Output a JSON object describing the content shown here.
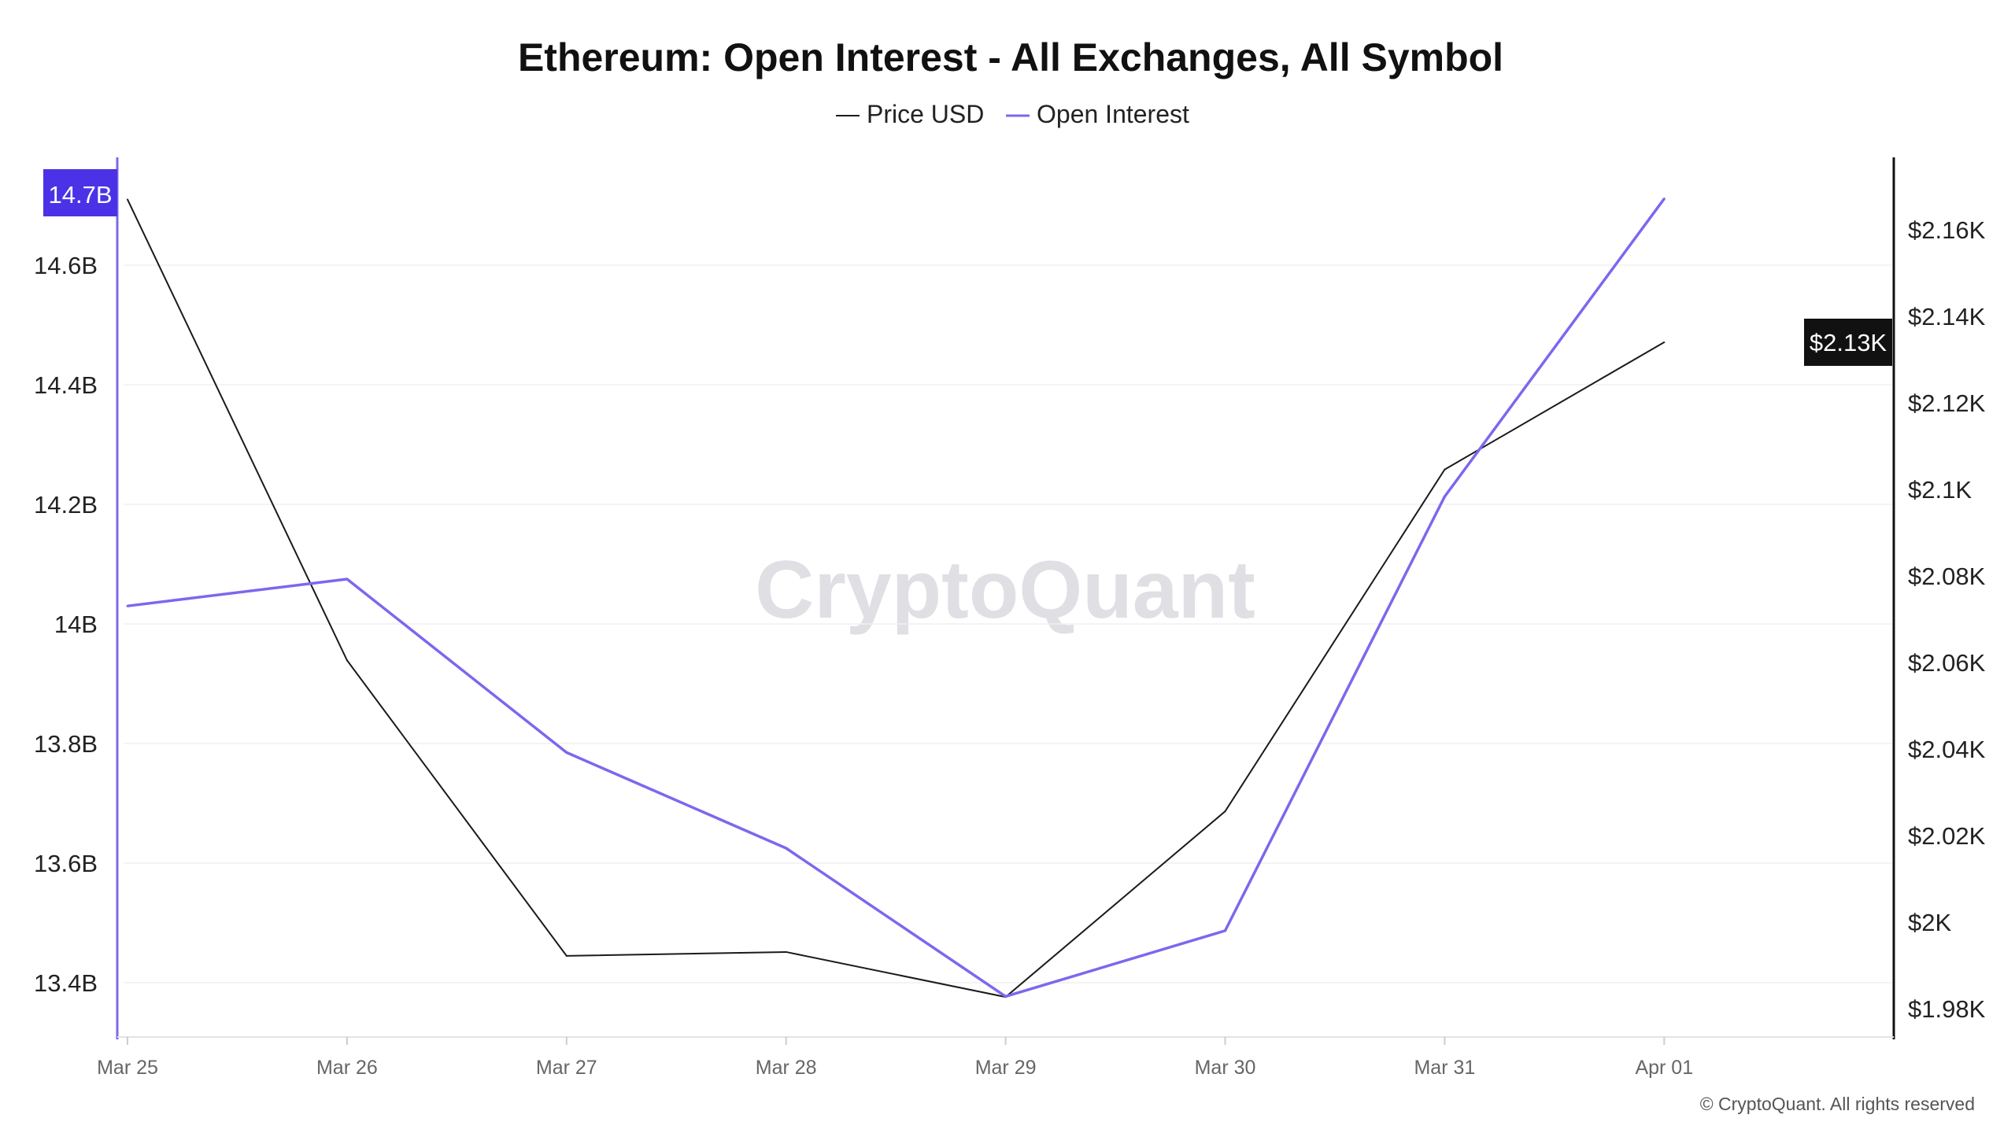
{
  "chart_data": {
    "type": "line",
    "title": "Ethereum: Open Interest - All Exchanges, All Symbol",
    "legend_position": "top-center",
    "categories": [
      "Mar 25",
      "Mar 26",
      "Mar 27",
      "Mar 28",
      "Mar 29",
      "Mar 30",
      "Mar 31",
      "Apr 01"
    ],
    "series": [
      {
        "name": "Price USD",
        "axis": "right",
        "color": "#1a1a1a",
        "unit": "K USD",
        "values": [
          2.167,
          2.0605,
          1.9922,
          1.9931,
          1.9827,
          2.0256,
          2.1046,
          2.134
        ]
      },
      {
        "name": "Open Interest",
        "axis": "left",
        "color": "#7b68ee",
        "unit": "B",
        "values": [
          14.03,
          14.075,
          13.785,
          13.625,
          13.377,
          13.487,
          14.213,
          14.711
        ]
      }
    ],
    "left_axis": {
      "ticks": [
        "13.4B",
        "13.6B",
        "13.8B",
        "14B",
        "14.2B",
        "14.4B",
        "14.6B"
      ],
      "tick_values": [
        13.4,
        13.6,
        13.8,
        14.0,
        14.2,
        14.4,
        14.6
      ],
      "current_label": "14.7B",
      "color": "#4b32e6"
    },
    "right_axis": {
      "ticks": [
        "$1.98K",
        "$2K",
        "$2.02K",
        "$2.04K",
        "$2.06K",
        "$2.08K",
        "$2.1K",
        "$2.12K",
        "$2.14K",
        "$2.16K"
      ],
      "tick_values": [
        1.98,
        2.0,
        2.02,
        2.04,
        2.06,
        2.08,
        2.1,
        2.12,
        2.14,
        2.16
      ],
      "current_label": "$2.13K"
    },
    "grid": true
  },
  "watermark": "CryptoQuant",
  "copyright": "© CryptoQuant. All rights reserved"
}
